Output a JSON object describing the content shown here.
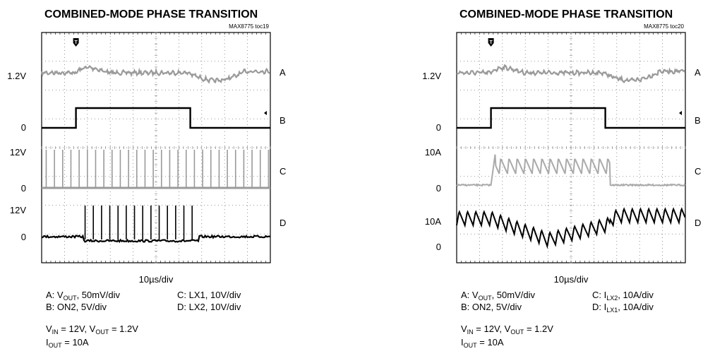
{
  "chart_data": [
    {
      "type": "line",
      "title": "COMBINED-MODE PHASE TRANSITION",
      "ref": "MAX8775 toc19",
      "xlabel": "10µs/div",
      "xlim": [
        0,
        100
      ],
      "x_unit": "µs",
      "grid": true,
      "trigger_marker": "T",
      "trigger_x": 15,
      "channels": [
        {
          "name": "A",
          "label": "1.2V",
          "color": "#9a9a9a",
          "kind": "vout"
        },
        {
          "name": "B",
          "zero_label": "0",
          "color": "#000000",
          "kind": "on2",
          "high_from": 15,
          "high_to": 65
        },
        {
          "name": "C",
          "top_label": "12V",
          "zero_label": "0",
          "color": "#9a9a9a",
          "kind": "lx1",
          "period": 3.6
        },
        {
          "name": "D",
          "top_label": "12V",
          "zero_label": "0",
          "color": "#000000",
          "kind": "lx2",
          "period": 3.6,
          "from": 18,
          "to": 69
        }
      ],
      "captions": [
        {
          "ch": "A:",
          "pre": "V",
          "sub": "OUT",
          "post": ", 50mV/div"
        },
        {
          "ch": "C:",
          "pre": "LX1, 10V/div",
          "sub": "",
          "post": ""
        },
        {
          "ch": "B:",
          "pre": "ON2, 5V/div",
          "sub": "",
          "post": ""
        },
        {
          "ch": "D:",
          "pre": "LX2, 10V/div",
          "sub": "",
          "post": ""
        }
      ],
      "conditions": {
        "vin_pre": "V",
        "vin_sub": "IN",
        "vin_post": " = 12V, ",
        "vout_pre": "V",
        "vout_sub": "OUT",
        "vout_post": " = 1.2V"
      },
      "iout": {
        "pre": "I",
        "sub": "OUT",
        "post": " = 10A"
      }
    },
    {
      "type": "line",
      "title": "COMBINED-MODE PHASE TRANSITION",
      "ref": "MAX8775 toc20",
      "xlabel": "10µs/div",
      "xlim": [
        0,
        100
      ],
      "x_unit": "µs",
      "grid": true,
      "trigger_marker": "T",
      "trigger_x": 15,
      "channels": [
        {
          "name": "A",
          "label": "1.2V",
          "color": "#9a9a9a",
          "kind": "vout"
        },
        {
          "name": "B",
          "zero_label": "0",
          "color": "#000000",
          "kind": "on2",
          "high_from": 15,
          "high_to": 65
        },
        {
          "name": "C",
          "top_label": "10A",
          "zero_label": "0",
          "color": "#aaaaaa",
          "kind": "ilx2",
          "period": 3.6
        },
        {
          "name": "D",
          "top_label": "10A",
          "zero_label": "0",
          "color": "#000000",
          "kind": "ilx1",
          "period": 3.6
        }
      ],
      "captions": [
        {
          "ch": "A:",
          "pre": "V",
          "sub": "OUT",
          "post": ", 50mV/div"
        },
        {
          "ch": "C:",
          "pre": "I",
          "sub": "LX2",
          "post": ", 10A/div"
        },
        {
          "ch": "B:",
          "pre": "ON2, 5V/div",
          "sub": "",
          "post": ""
        },
        {
          "ch": "D:",
          "pre": "I",
          "sub": "LX1",
          "post": ", 10A/div"
        }
      ],
      "conditions": {
        "vin_pre": "V",
        "vin_sub": "IN",
        "vin_post": " = 12V, ",
        "vout_pre": "V",
        "vout_sub": "OUT",
        "vout_post": " = 1.2V"
      },
      "iout": {
        "pre": "I",
        "sub": "OUT",
        "post": " = 10A"
      }
    }
  ]
}
